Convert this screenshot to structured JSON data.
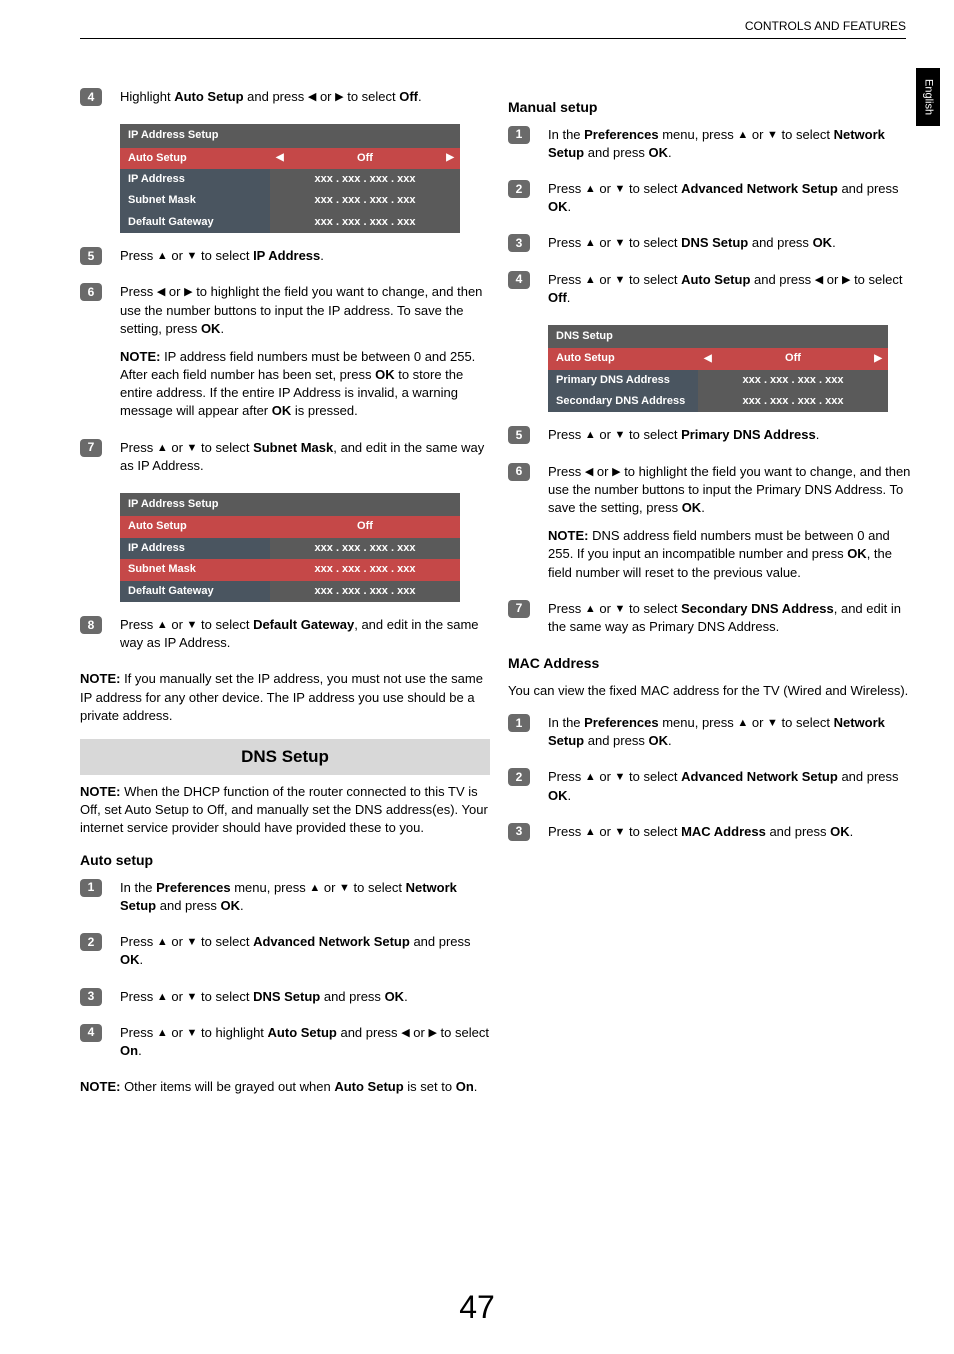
{
  "header": {
    "title": "CONTROLS AND FEATURES",
    "side_tab": "English"
  },
  "page_number": "47",
  "glyphs": {
    "up": "▲",
    "down": "▼",
    "left": "◀",
    "right": "▶"
  },
  "tables": {
    "ip1": {
      "title": "IP Address Setup",
      "rows": [
        {
          "label": "Auto Setup",
          "value": "Off",
          "highlight": true,
          "arrows": true
        },
        {
          "label": "IP Address",
          "value": "xxx   .   xxx   .   xxx   .   xxx"
        },
        {
          "label": "Subnet Mask",
          "value": "xxx   .   xxx   .   xxx   .   xxx"
        },
        {
          "label": "Default Gateway",
          "value": "xxx   .   xxx   .   xxx   .   xxx"
        }
      ]
    },
    "ip2": {
      "title": "IP Address Setup",
      "rows": [
        {
          "label": "Auto Setup",
          "value": "Off",
          "highlight": true
        },
        {
          "label": "IP Address",
          "value": "xxx   .   xxx   .   xxx   .   xxx"
        },
        {
          "label": "Subnet Mask",
          "value": "xxx   .   xxx   .   xxx   .   xxx",
          "highlight": true
        },
        {
          "label": "Default Gateway",
          "value": "xxx   .   xxx   .   xxx   .   xxx"
        }
      ]
    },
    "dns": {
      "title": "DNS Setup",
      "rows": [
        {
          "label": "Auto Setup",
          "value": "Off",
          "highlight": true,
          "arrows": true
        },
        {
          "label": "Primary DNS Address",
          "value": "xxx   .   xxx   .   xxx   .   xxx"
        },
        {
          "label": "Secondary DNS Address",
          "value": "xxx   .   xxx   .   xxx   .   xxx"
        }
      ]
    }
  },
  "left": {
    "s4": {
      "num": "4",
      "pre": "Highlight ",
      "b1": "Auto Setup",
      "mid": " and press ",
      "post": " or ",
      "tail": " to select ",
      "b2": "Off",
      "end": "."
    },
    "s5": {
      "num": "5",
      "pre": "Press ",
      "mid": " or ",
      "tail": " to select ",
      "b1": "IP Address",
      "end": "."
    },
    "s6": {
      "num": "6",
      "pre": "Press ",
      "mid": " or ",
      "body": " to highlight the field you want to change, and then use the number buttons to input the IP address. To save the setting, press ",
      "b1": "OK",
      "end": ".",
      "note_label": "NOTE:",
      "note": " IP address field numbers must be between 0 and 255. After each field number has been set, press ",
      "note_b1": "OK",
      "note_mid": " to store the entire address. If the entire IP Address is invalid, a warning message will appear after ",
      "note_b2": "OK",
      "note_end": " is pressed."
    },
    "s7": {
      "num": "7",
      "pre": "Press ",
      "mid": " or ",
      "tail": " to select ",
      "b1": "Subnet Mask",
      "end": ", and edit in the same way as IP Address."
    },
    "s8": {
      "num": "8",
      "pre": "Press ",
      "mid": " or ",
      "tail": " to select ",
      "b1": "Default Gateway",
      "end": ", and edit in the same way as IP Address."
    },
    "note_manual": {
      "label": "NOTE:",
      "text": " If you manually set the IP address, you must not use the same IP address for any other device. The IP address you use should be a private address."
    },
    "dns_title": "DNS Setup",
    "dns_note": {
      "label": "NOTE:",
      "text": " When the DHCP function of the router connected to this TV is Off, set Auto Setup to Off, and manually set the DNS address(es). Your internet service provider should have provided these to you."
    },
    "auto_head": "Auto setup",
    "a1": {
      "num": "1",
      "pre": "In the ",
      "b1": "Preferences",
      "mid": " menu, press ",
      "mid2": " or ",
      "tail": " to select ",
      "b2": "Network Setup",
      "end": " and press ",
      "b3": "OK",
      "dot": "."
    },
    "a2": {
      "num": "2",
      "pre": "Press ",
      "mid": " or ",
      "tail": " to select ",
      "b1": "Advanced Network Setup",
      "end": " and press ",
      "b2": "OK",
      "dot": "."
    },
    "a3": {
      "num": "3",
      "pre": "Press ",
      "mid": " or ",
      "tail": " to select ",
      "b1": "DNS Setup",
      "end": " and press ",
      "b2": "OK",
      "dot": "."
    },
    "a4": {
      "num": "4",
      "pre": "Press ",
      "mid": " or ",
      "tail": " to highlight ",
      "b1": "Auto Setup",
      "end": " and press ",
      "mid2": " or ",
      "tail2": " to select ",
      "b2": "On",
      "dot": "."
    },
    "note_auto": {
      "label": "NOTE:",
      "text": " Other items will be grayed out when ",
      "b1": "Auto Setup",
      "text2": " is set to ",
      "b2": "On",
      "dot": "."
    }
  },
  "right": {
    "manual_head": "Manual setup",
    "m1": {
      "num": "1",
      "pre": "In the ",
      "b1": "Preferences",
      "mid": " menu, press ",
      "mid2": " or ",
      "tail": " to select ",
      "b2": "Network Setup",
      "end": " and press ",
      "b3": "OK",
      "dot": "."
    },
    "m2": {
      "num": "2",
      "pre": "Press ",
      "mid": " or ",
      "tail": " to select ",
      "b1": "Advanced Network Setup",
      "end": " and press ",
      "b2": "OK",
      "dot": "."
    },
    "m3": {
      "num": "3",
      "pre": "Press ",
      "mid": " or ",
      "tail": " to select ",
      "b1": "DNS Setup",
      "end": " and press ",
      "b2": "OK",
      "dot": "."
    },
    "m4": {
      "num": "4",
      "pre": "Press ",
      "mid": " or ",
      "tail": " to select ",
      "b1": "Auto Setup",
      "end": " and press ",
      "mid2": " or ",
      "tail2": " to select ",
      "b2": "Off",
      "dot": "."
    },
    "m5": {
      "num": "5",
      "pre": "Press ",
      "mid": " or ",
      "tail": " to select ",
      "b1": "Primary DNS Address",
      "dot": "."
    },
    "m6": {
      "num": "6",
      "pre": "Press ",
      "mid": " or ",
      "body": " to highlight the field you want to change, and then use the number buttons to input the Primary DNS Address. To save the setting, press ",
      "b1": "OK",
      "dot": ".",
      "note_label": "NOTE:",
      "note": " DNS address field numbers must be between 0 and 255. If you input an incompatible number and press ",
      "note_b1": "OK",
      "note_end": ", the field number will reset to the previous value."
    },
    "m7": {
      "num": "7",
      "pre": "Press ",
      "mid": " or ",
      "tail": " to select ",
      "b1": "Secondary DNS Address",
      "end": ", and edit in the same way as Primary DNS Address."
    },
    "mac_head": "MAC Address",
    "mac_intro": " You can view the fixed MAC address for the TV (Wired and Wireless).",
    "mac1": {
      "num": "1",
      "pre": "In the ",
      "b1": "Preferences",
      "mid": " menu, press ",
      "mid2": " or ",
      "tail": " to select ",
      "b2": "Network Setup",
      "end": " and press ",
      "b3": "OK",
      "dot": "."
    },
    "mac2": {
      "num": "2",
      "pre": "Press ",
      "mid": " or ",
      "tail": " to select ",
      "b1": "Advanced Network Setup",
      "end": " and press ",
      "b2": "OK",
      "dot": "."
    },
    "mac3": {
      "num": "3",
      "pre": "Press ",
      "mid": " or ",
      "tail": " to select ",
      "b1": "MAC Address",
      "end": " and press ",
      "b2": "OK",
      "dot": "."
    }
  }
}
